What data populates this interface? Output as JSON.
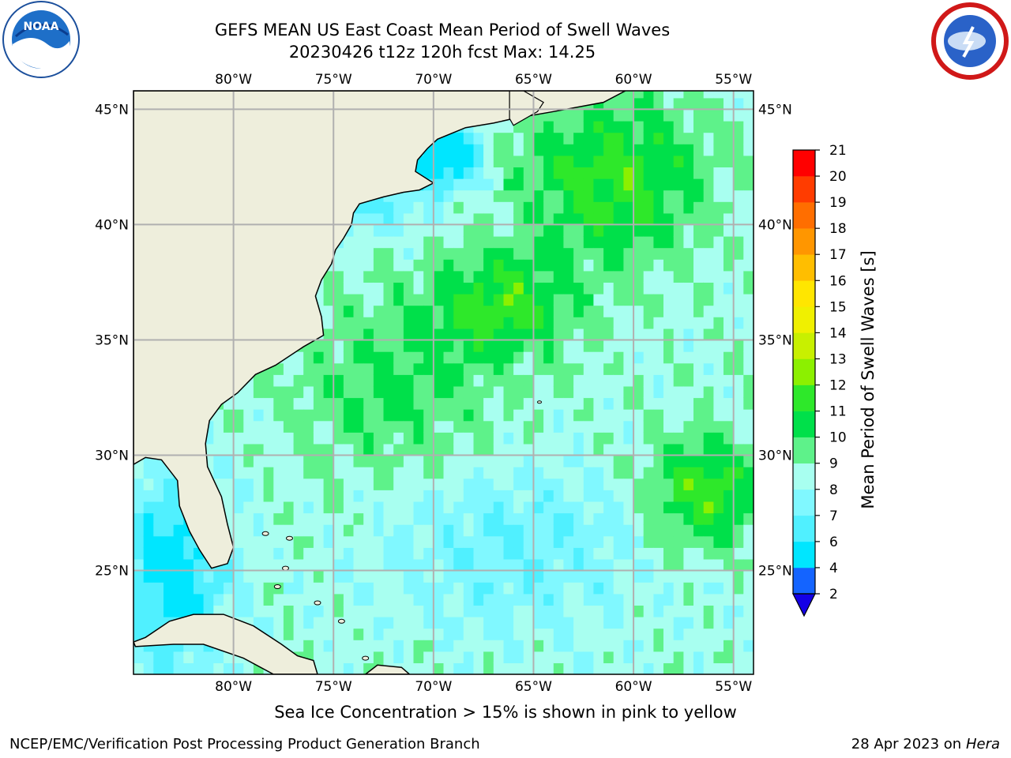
{
  "title_line1": "GEFS MEAN US East Coast Mean Period of Swell Waves",
  "title_line2": "20230426 t12z 120h fcst   Max: 14.25",
  "caption": "Sea Ice Concentration > 15% is shown in pink to yellow",
  "footer_left": "NCEP/EMC/Verification Post Processing Product Generation Branch",
  "footer_date": "28 Apr 2023 on",
  "footer_host": "Hera",
  "logos": {
    "left": "noaa-logo",
    "right": "nws-logo"
  },
  "map": {
    "lon_range": [
      -85,
      -54
    ],
    "lat_range": [
      20.5,
      45.8
    ],
    "lon_ticks": [
      {
        "value": -80,
        "label": "80°W"
      },
      {
        "value": -75,
        "label": "75°W"
      },
      {
        "value": -70,
        "label": "70°W"
      },
      {
        "value": -65,
        "label": "65°W"
      },
      {
        "value": -60,
        "label": "60°W"
      },
      {
        "value": -55,
        "label": "55°W"
      }
    ],
    "lat_ticks": [
      {
        "value": 45,
        "label": "45°N"
      },
      {
        "value": 40,
        "label": "40°N"
      },
      {
        "value": 35,
        "label": "35°N"
      },
      {
        "value": 30,
        "label": "30°N"
      },
      {
        "value": 25,
        "label": "25°N"
      }
    ],
    "grid": true,
    "land_color": "#eeeedc",
    "grid_color": "#b0b0b0"
  },
  "colorbar": {
    "title": "Mean Period of Swell Waves [s]",
    "levels": [
      2,
      4,
      6,
      7,
      8,
      9,
      10,
      11,
      12,
      13,
      14,
      15,
      16,
      17,
      18,
      19,
      20,
      21
    ],
    "tick_labels": [
      "2",
      "4",
      "6",
      "7",
      "8",
      "9",
      "10",
      "11",
      "12",
      "13",
      "14",
      "15",
      "16",
      "17",
      "18",
      "19",
      "20",
      "21"
    ],
    "colors": [
      "#1464ff",
      "#00e6ff",
      "#50f0ff",
      "#80f8ff",
      "#a8fff0",
      "#5ef28a",
      "#00e04a",
      "#2ee82a",
      "#8cf000",
      "#c8f000",
      "#f0f000",
      "#ffe600",
      "#ffbe00",
      "#ff9600",
      "#ff6e00",
      "#ff3c00",
      "#ff0000"
    ],
    "extend_color": "#1400e6",
    "extend": "min"
  }
}
